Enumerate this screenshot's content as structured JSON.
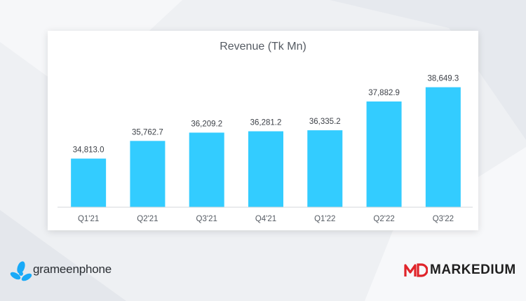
{
  "chart_data": {
    "type": "bar",
    "title": "Revenue (Tk Mn)",
    "categories": [
      "Q1'21",
      "Q2'21",
      "Q3'21",
      "Q4'21",
      "Q1'22",
      "Q2'22",
      "Q3'22"
    ],
    "values": [
      34813.0,
      35762.7,
      36209.2,
      36281.2,
      36335.2,
      37882.9,
      38649.3
    ],
    "value_labels": [
      "34,813.0",
      "35,762.7",
      "36,209.2",
      "36,281.2",
      "36,335.2",
      "37,882.9",
      "38,649.3"
    ],
    "ylim": [
      32200,
      39500
    ],
    "grid": false,
    "legend": "none",
    "bar_color": "#33ccff"
  },
  "branding": {
    "left_logo": "grameenphone",
    "right_logo_mark": "MD",
    "right_logo": "MARKEDIUM",
    "left_logo_color": "#19aaf8",
    "right_logo_mark_color": "#e0242a"
  }
}
